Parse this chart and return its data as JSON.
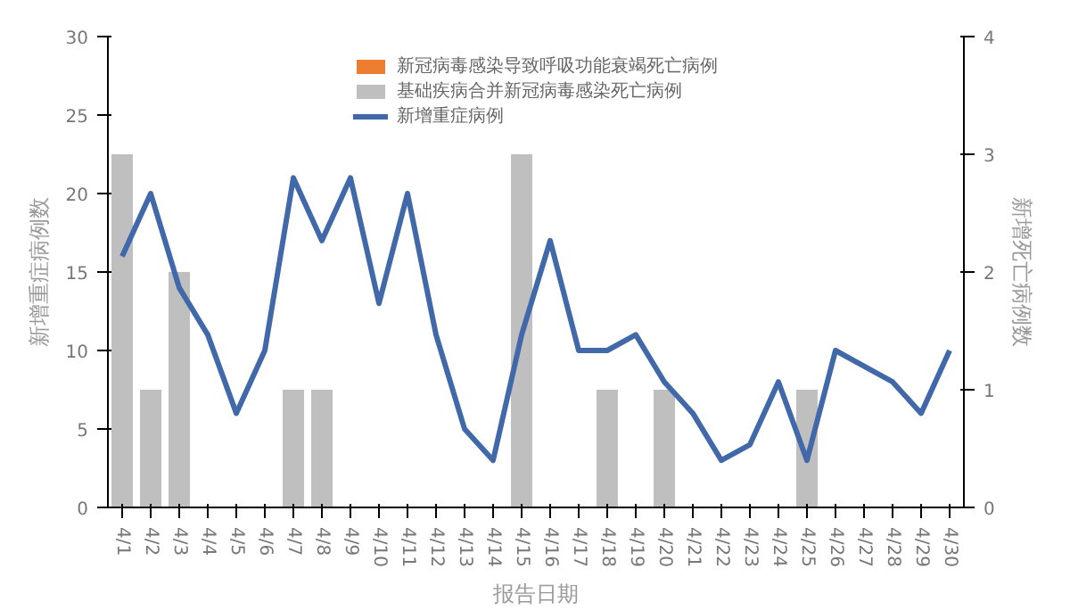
{
  "chart_data": {
    "type": "bar",
    "xlabel": "报告日期",
    "ylabel": "新增重症病例数",
    "y2label": "新增死亡病例数",
    "categories": [
      "4/1",
      "4/2",
      "4/3",
      "4/4",
      "4/5",
      "4/6",
      "4/7",
      "4/8",
      "4/9",
      "4/10",
      "4/11",
      "4/12",
      "4/13",
      "4/14",
      "4/15",
      "4/16",
      "4/17",
      "4/18",
      "4/19",
      "4/20",
      "4/21",
      "4/22",
      "4/23",
      "4/24",
      "4/25",
      "4/26",
      "4/27",
      "4/28",
      "4/29",
      "4/30"
    ],
    "series": [
      {
        "name": "新冠病毒感染导致呼吸功能衰竭死亡病例",
        "color": "#ed7d31",
        "axis": "y2",
        "values": [
          0,
          0,
          0,
          0,
          0,
          0,
          0,
          0,
          0,
          0,
          0,
          0,
          0,
          0,
          0,
          0,
          0,
          0,
          0,
          0,
          0,
          0,
          0,
          0,
          0,
          0,
          0,
          0,
          0,
          0
        ]
      },
      {
        "name": "基础疾病合并新冠病毒感染死亡病例",
        "color": "#bfbfbf",
        "axis": "y2",
        "values": [
          3,
          1,
          2,
          0,
          0,
          0,
          1,
          1,
          0,
          0,
          0,
          0,
          0,
          0,
          3,
          0,
          0,
          1,
          0,
          1,
          0,
          0,
          0,
          0,
          1,
          0,
          0,
          0,
          0,
          0
        ]
      },
      {
        "name": "新增重症病例",
        "color": "#4169aa",
        "type": "line",
        "values": [
          16,
          20,
          14,
          11,
          6,
          10,
          21,
          17,
          21,
          13,
          20,
          11,
          5,
          3,
          11,
          17,
          10,
          10,
          11,
          8,
          6,
          3,
          4,
          8,
          3,
          10,
          9,
          8,
          6,
          10
        ]
      }
    ],
    "ylim": [
      0,
      30
    ],
    "yticks": [
      0,
      5,
      10,
      15,
      20,
      25,
      30
    ],
    "y2lim": [
      0,
      4
    ],
    "y2ticks": [
      0,
      1,
      2,
      3,
      4
    ],
    "grid": false,
    "legend": "top"
  }
}
